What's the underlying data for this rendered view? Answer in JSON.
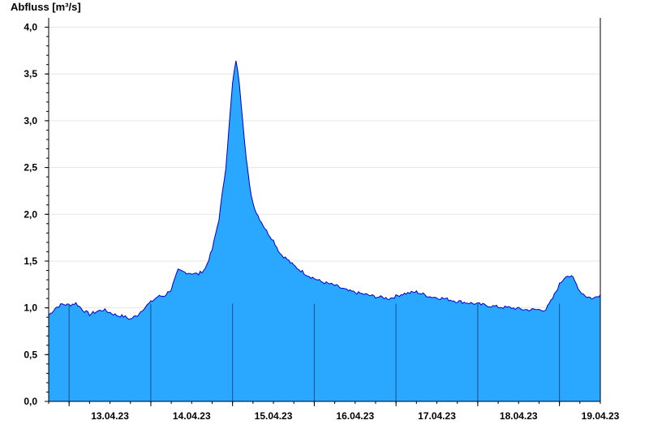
{
  "chart_data": {
    "type": "area",
    "ylabel": "Abfluss [m³/s]",
    "ylim": [
      0,
      4.1
    ],
    "y_ticks": [
      0,
      0.5,
      1.0,
      1.5,
      2.0,
      2.5,
      3.0,
      3.5,
      4.0
    ],
    "y_tick_labels": [
      "0,0",
      "0,5",
      "1,0",
      "1,5",
      "2,0",
      "2,5",
      "3,0",
      "3,5",
      "4,0"
    ],
    "x_range_days": [
      "12.04.23 18:00",
      "19.04.23 12:00"
    ],
    "x_day_labels": [
      "13.04.23",
      "14.04.23",
      "15.04.23",
      "16.04.23",
      "17.04.23",
      "18.04.23",
      "19.04.23"
    ],
    "grid": "horizontal",
    "legend": "none",
    "fill_color": "#2aa7ff",
    "line_color": "#0000cc",
    "x_hours": [
      0,
      2,
      4,
      6,
      8,
      10,
      12,
      14,
      16,
      18,
      20,
      22,
      24,
      26,
      28,
      30,
      32,
      34,
      36,
      38,
      40,
      42,
      44,
      46,
      48,
      50,
      52,
      54,
      55,
      56,
      57,
      58,
      59,
      60,
      61,
      62,
      64,
      66,
      68,
      70,
      72,
      76,
      80,
      84,
      88,
      92,
      96,
      100,
      104,
      108,
      112,
      116,
      120,
      124,
      128,
      132,
      136,
      140,
      144,
      146,
      148,
      150,
      152,
      154,
      156,
      158,
      160,
      162
    ],
    "values": [
      0.92,
      1.0,
      1.04,
      1.03,
      1.05,
      0.98,
      0.93,
      0.96,
      0.98,
      0.95,
      0.92,
      0.91,
      0.88,
      0.92,
      1.0,
      1.06,
      1.12,
      1.13,
      1.2,
      1.4,
      1.38,
      1.37,
      1.36,
      1.42,
      1.62,
      1.95,
      2.5,
      3.4,
      3.65,
      3.4,
      3.0,
      2.6,
      2.3,
      2.12,
      2.02,
      1.95,
      1.82,
      1.72,
      1.58,
      1.52,
      1.45,
      1.35,
      1.28,
      1.24,
      1.18,
      1.15,
      1.12,
      1.1,
      1.15,
      1.17,
      1.12,
      1.1,
      1.07,
      1.05,
      1.03,
      1.01,
      1.0,
      0.98,
      0.98,
      0.98,
      1.1,
      1.25,
      1.35,
      1.32,
      1.18,
      1.12,
      1.1,
      1.14
    ]
  }
}
